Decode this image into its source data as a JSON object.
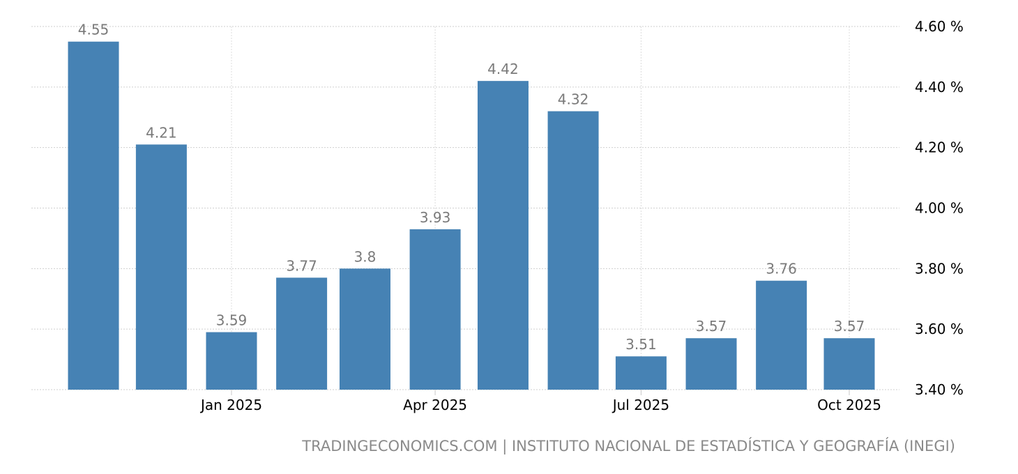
{
  "chart_data": {
    "type": "bar",
    "x": [
      "2024-11",
      "2024-12",
      "2025-01",
      "2025-02",
      "2025-03",
      "2025-04",
      "2025-05",
      "2025-06",
      "2025-07",
      "2025-08",
      "2025-09",
      "2025-10"
    ],
    "values": [
      4.55,
      4.21,
      3.59,
      3.77,
      3.8,
      3.93,
      4.42,
      4.32,
      3.51,
      3.57,
      3.76,
      3.57
    ],
    "data_labels": [
      "4.55",
      "4.21",
      "3.59",
      "3.77",
      "3.8",
      "3.93",
      "4.42",
      "4.32",
      "3.51",
      "3.57",
      "3.76",
      "3.57"
    ],
    "ylim": [
      3.4,
      4.6
    ],
    "yticks": [
      3.4,
      3.6,
      3.8,
      4.0,
      4.2,
      4.4,
      4.6
    ],
    "ytick_labels": [
      "3.40 %",
      "3.60 %",
      "3.80 %",
      "4.00 %",
      "4.20 %",
      "4.40 %",
      "4.60 %"
    ],
    "xticks": [
      "2025-01",
      "2025-04",
      "2025-07",
      "2025-10"
    ],
    "xtick_labels": [
      "Jan 2025",
      "Apr 2025",
      "Jul 2025",
      "Oct 2025"
    ],
    "y_axis_position": "right",
    "grid": true,
    "bar_color": "#4682b4",
    "label_color": "#7a7a7a",
    "title": "",
    "xlabel": "",
    "ylabel": ""
  },
  "source": "TRADINGECONOMICS.COM | INSTITUTO NACIONAL DE ESTADÍSTICA Y GEOGRAFÍA (INEGI)"
}
